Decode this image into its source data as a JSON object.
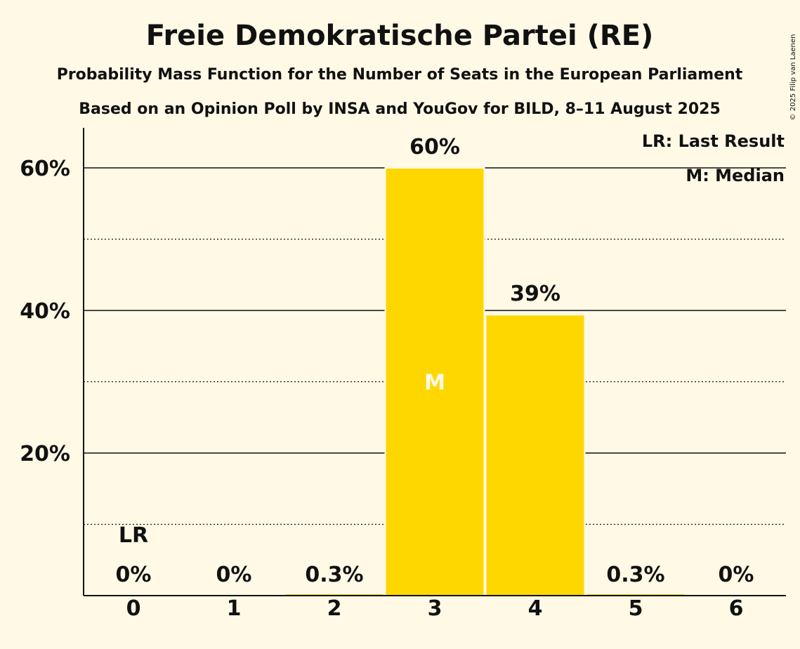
{
  "chart_data": {
    "type": "bar",
    "title": "Freie Demokratische Partei (RE)",
    "subtitle": "Probability Mass Function for the Number of Seats in the European Parliament",
    "source": "Based on an Opinion Poll by INSA and YouGov for BILD, 8–11 August 2025",
    "categories": [
      "0",
      "1",
      "2",
      "3",
      "4",
      "5",
      "6"
    ],
    "values": [
      0,
      0,
      0.3,
      60,
      39.4,
      0.3,
      0
    ],
    "value_labels": [
      "0%",
      "0%",
      "0.3%",
      "60%",
      "39%",
      "0.3%",
      "0%"
    ],
    "ylim": [
      0,
      65
    ],
    "yticks": [
      20,
      40,
      60
    ],
    "ytick_labels": [
      "20%",
      "40%",
      "60%"
    ],
    "minor_gridlines": [
      10,
      30,
      50
    ],
    "last_result_index": 0,
    "last_result_marker": "LR",
    "median_index": 3,
    "median_marker": "M",
    "legend": [
      "LR: Last Result",
      "M: Median"
    ],
    "legend_position": "top-right",
    "copyright": "© 2025 Filip van Laenen",
    "colors": {
      "bar": "#FFD700",
      "background": "#FFF9E6",
      "text": "#111111"
    }
  }
}
